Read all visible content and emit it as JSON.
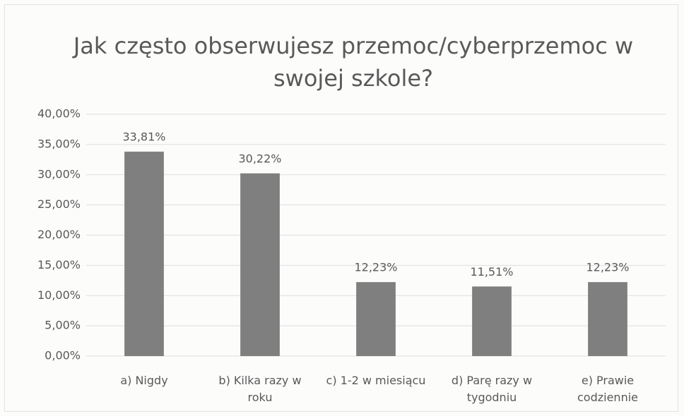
{
  "chart_data": {
    "type": "bar",
    "title": "Jak często obserwujesz przemoc/cyberprzemoc w swojej szkole?",
    "categories": [
      "a) Nigdy",
      "b) Kilka razy w roku",
      "c)  1-2 w miesiącu",
      "d) Parę razy w tygodniu",
      "e) Prawie codziennie"
    ],
    "values": [
      33.81,
      30.22,
      12.23,
      11.51,
      12.23
    ],
    "value_labels": [
      "33,81%",
      "30,22%",
      "12,23%",
      "11,51%",
      "12,23%"
    ],
    "color": "#7f7f7f",
    "ylim": [
      0,
      40
    ],
    "yticks": [
      {
        "value": 0,
        "label": "0,00%"
      },
      {
        "value": 5,
        "label": "5,00%"
      },
      {
        "value": 10,
        "label": "10,00%"
      },
      {
        "value": 15,
        "label": "15,00%"
      },
      {
        "value": 20,
        "label": "20,00%"
      },
      {
        "value": 25,
        "label": "25,00%"
      },
      {
        "value": 30,
        "label": "30,00%"
      },
      {
        "value": 35,
        "label": "35,00%"
      },
      {
        "value": 40,
        "label": "40,00%"
      }
    ],
    "grid": true
  }
}
